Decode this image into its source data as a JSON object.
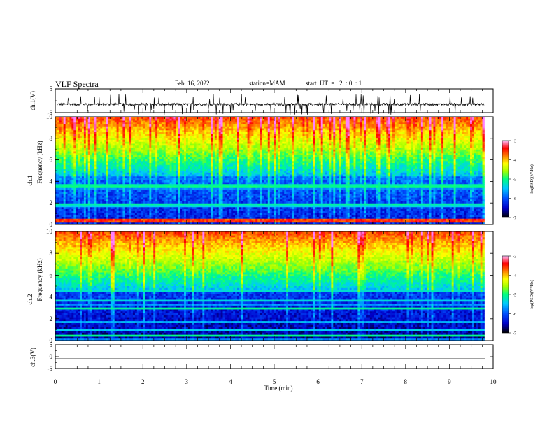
{
  "header": {
    "title": "VLF Spectra",
    "date": "Feb. 16, 2022",
    "station": "station=MAM",
    "start": "start  UT  =   2  : 0  : 1"
  },
  "chart_data": [
    {
      "type": "line",
      "ylabel": "ch.1(V)",
      "ylim": [
        -5,
        5
      ],
      "yticks": [
        5,
        -5
      ],
      "xlim": [
        0,
        10
      ],
      "series": [
        {
          "description_free": true,
          "baseline": -1.5,
          "spread": 1.0
        }
      ]
    },
    {
      "type": "heatmap",
      "ylabel_top": "ch.1",
      "ylabel": "Frequency  (kHz)",
      "ylim": [
        0,
        10
      ],
      "yticks": [
        0,
        2,
        4,
        6,
        8,
        10
      ],
      "xlim": [
        0,
        9.8
      ],
      "colorbar": {
        "label": "log(PSD)(V²/Hz)",
        "range": [
          -7,
          -3
        ],
        "ticks": [
          -3,
          -4,
          -5,
          -6,
          -7
        ]
      }
    },
    {
      "type": "heatmap",
      "ylabel_top": "ch.2",
      "ylabel": "Frequency  (kHz)",
      "ylim": [
        0,
        10
      ],
      "yticks": [
        0,
        2,
        4,
        6,
        8,
        10
      ],
      "xlim": [
        0,
        9.8
      ],
      "colorbar": {
        "label": "log(PSD)(V²/Hz)",
        "range": [
          -7,
          -3
        ],
        "ticks": [
          -3,
          -4,
          -5,
          -6,
          -7
        ]
      }
    },
    {
      "type": "line",
      "ylabel": "ch.3(V)",
      "ylim": [
        -5,
        5
      ],
      "yticks": [
        5,
        0,
        -5
      ],
      "xlim": [
        0,
        10
      ],
      "series": [
        {
          "constant": -1.0
        }
      ]
    }
  ],
  "xaxis": {
    "label": "Time  (min)",
    "ticks": [
      0,
      1,
      2,
      3,
      4,
      5,
      6,
      7,
      8,
      9,
      10
    ],
    "range": [
      0,
      10
    ]
  },
  "colors": {
    "colormap": [
      "#000000",
      "#0000c8",
      "#0050ff",
      "#00c8ff",
      "#00ff80",
      "#a0ff00",
      "#ffff00",
      "#ff8000",
      "#ff0000",
      "#ff80ff"
    ]
  }
}
